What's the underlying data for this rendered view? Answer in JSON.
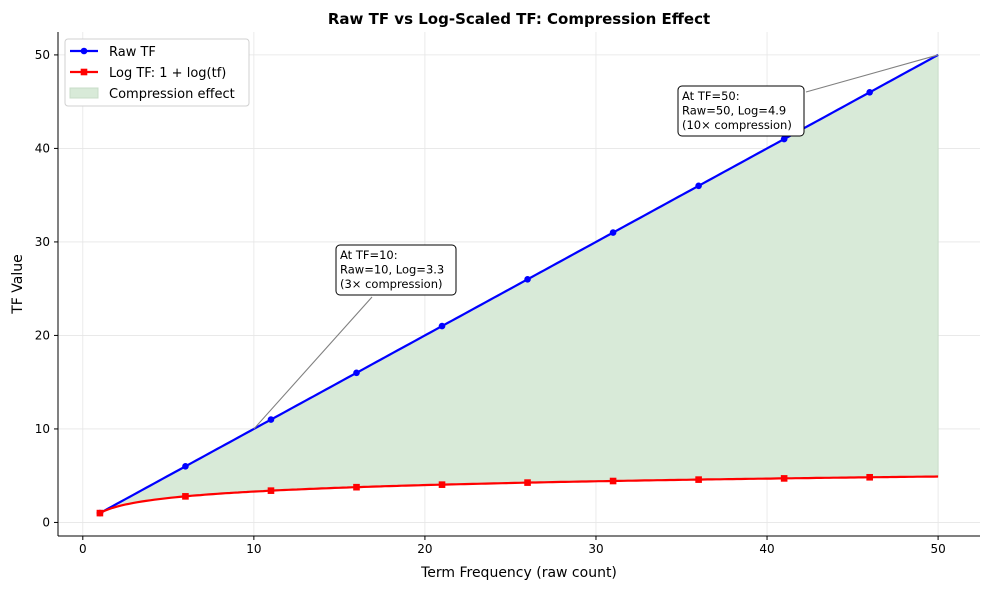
{
  "chart_data": {
    "type": "line",
    "title": "Raw TF vs Log-Scaled TF: Compression Effect",
    "xlabel": "Term Frequency (raw count)",
    "ylabel": "TF Value",
    "xlim": [
      -1.45,
      52.45
    ],
    "ylim": [
      -1.45,
      52.45
    ],
    "xticks": [
      0,
      10,
      20,
      30,
      40,
      50
    ],
    "yticks": [
      0,
      10,
      20,
      30,
      40,
      50
    ],
    "grid": true,
    "legend_position": "top-left",
    "x_range": [
      1,
      50
    ],
    "marker_x": [
      1,
      6,
      11,
      16,
      21,
      26,
      31,
      36,
      41,
      46
    ],
    "series": [
      {
        "name": "Raw TF",
        "formula": "tf",
        "color": "#0000ff",
        "marker": "circle",
        "values": [
          1,
          6,
          11,
          16,
          21,
          26,
          31,
          36,
          41,
          46,
          50
        ]
      },
      {
        "name": "Log TF: 1 + log(tf)",
        "formula": "1 + ln(tf)",
        "color": "#ff0000",
        "marker": "square",
        "values": [
          1.0,
          2.79,
          3.4,
          3.77,
          4.04,
          4.26,
          4.43,
          4.58,
          4.71,
          4.83,
          4.91
        ]
      }
    ],
    "fill": {
      "name": "Compression effect",
      "color": "#d8ead8"
    },
    "annotations": [
      {
        "lines": [
          "At TF=10:",
          "Raw=10, Log=3.3",
          "(3× compression)"
        ],
        "point": [
          10,
          10
        ]
      },
      {
        "lines": [
          "At TF=50:",
          "Raw=50, Log=4.9",
          "(10× compression)"
        ],
        "point": [
          50,
          50
        ]
      }
    ]
  }
}
